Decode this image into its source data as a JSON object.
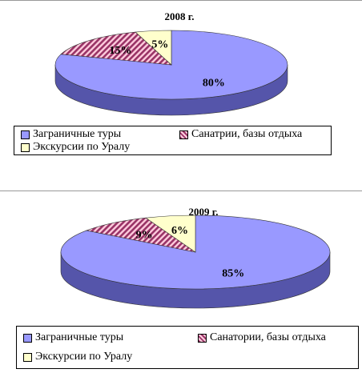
{
  "chart_data": [
    {
      "type": "pie",
      "title": "2008 г.",
      "categories": [
        "Заграничные туры",
        "Санатрии, базы отдыха",
        "Экскурсии по Уралу"
      ],
      "values": [
        80,
        15,
        5
      ],
      "value_labels": [
        "80%",
        "15%",
        "5%"
      ],
      "legend": [
        "Заграничные туры",
        "Санатрии, базы отдыха",
        "Экскурсии по Уралу"
      ],
      "legend_position": "bottom"
    },
    {
      "type": "pie",
      "title": "2009 г.",
      "categories": [
        "Заграничные туры",
        "Санатории, базы отдыха",
        "Экскурсии по Уралу"
      ],
      "values": [
        85,
        9,
        6
      ],
      "value_labels": [
        "85%",
        "9%",
        "6%"
      ],
      "legend": [
        "Заграничные туры",
        "Санатории, базы отдыха",
        "Экскурсии по Уралу"
      ],
      "legend_position": "bottom"
    }
  ],
  "colors": {
    "blue": "#9999ff",
    "blue_side": "#5555aa",
    "red": "#993366",
    "red_light": "#ffccdd",
    "cream": "#ffffcc",
    "cream_side": "#dddd99"
  }
}
